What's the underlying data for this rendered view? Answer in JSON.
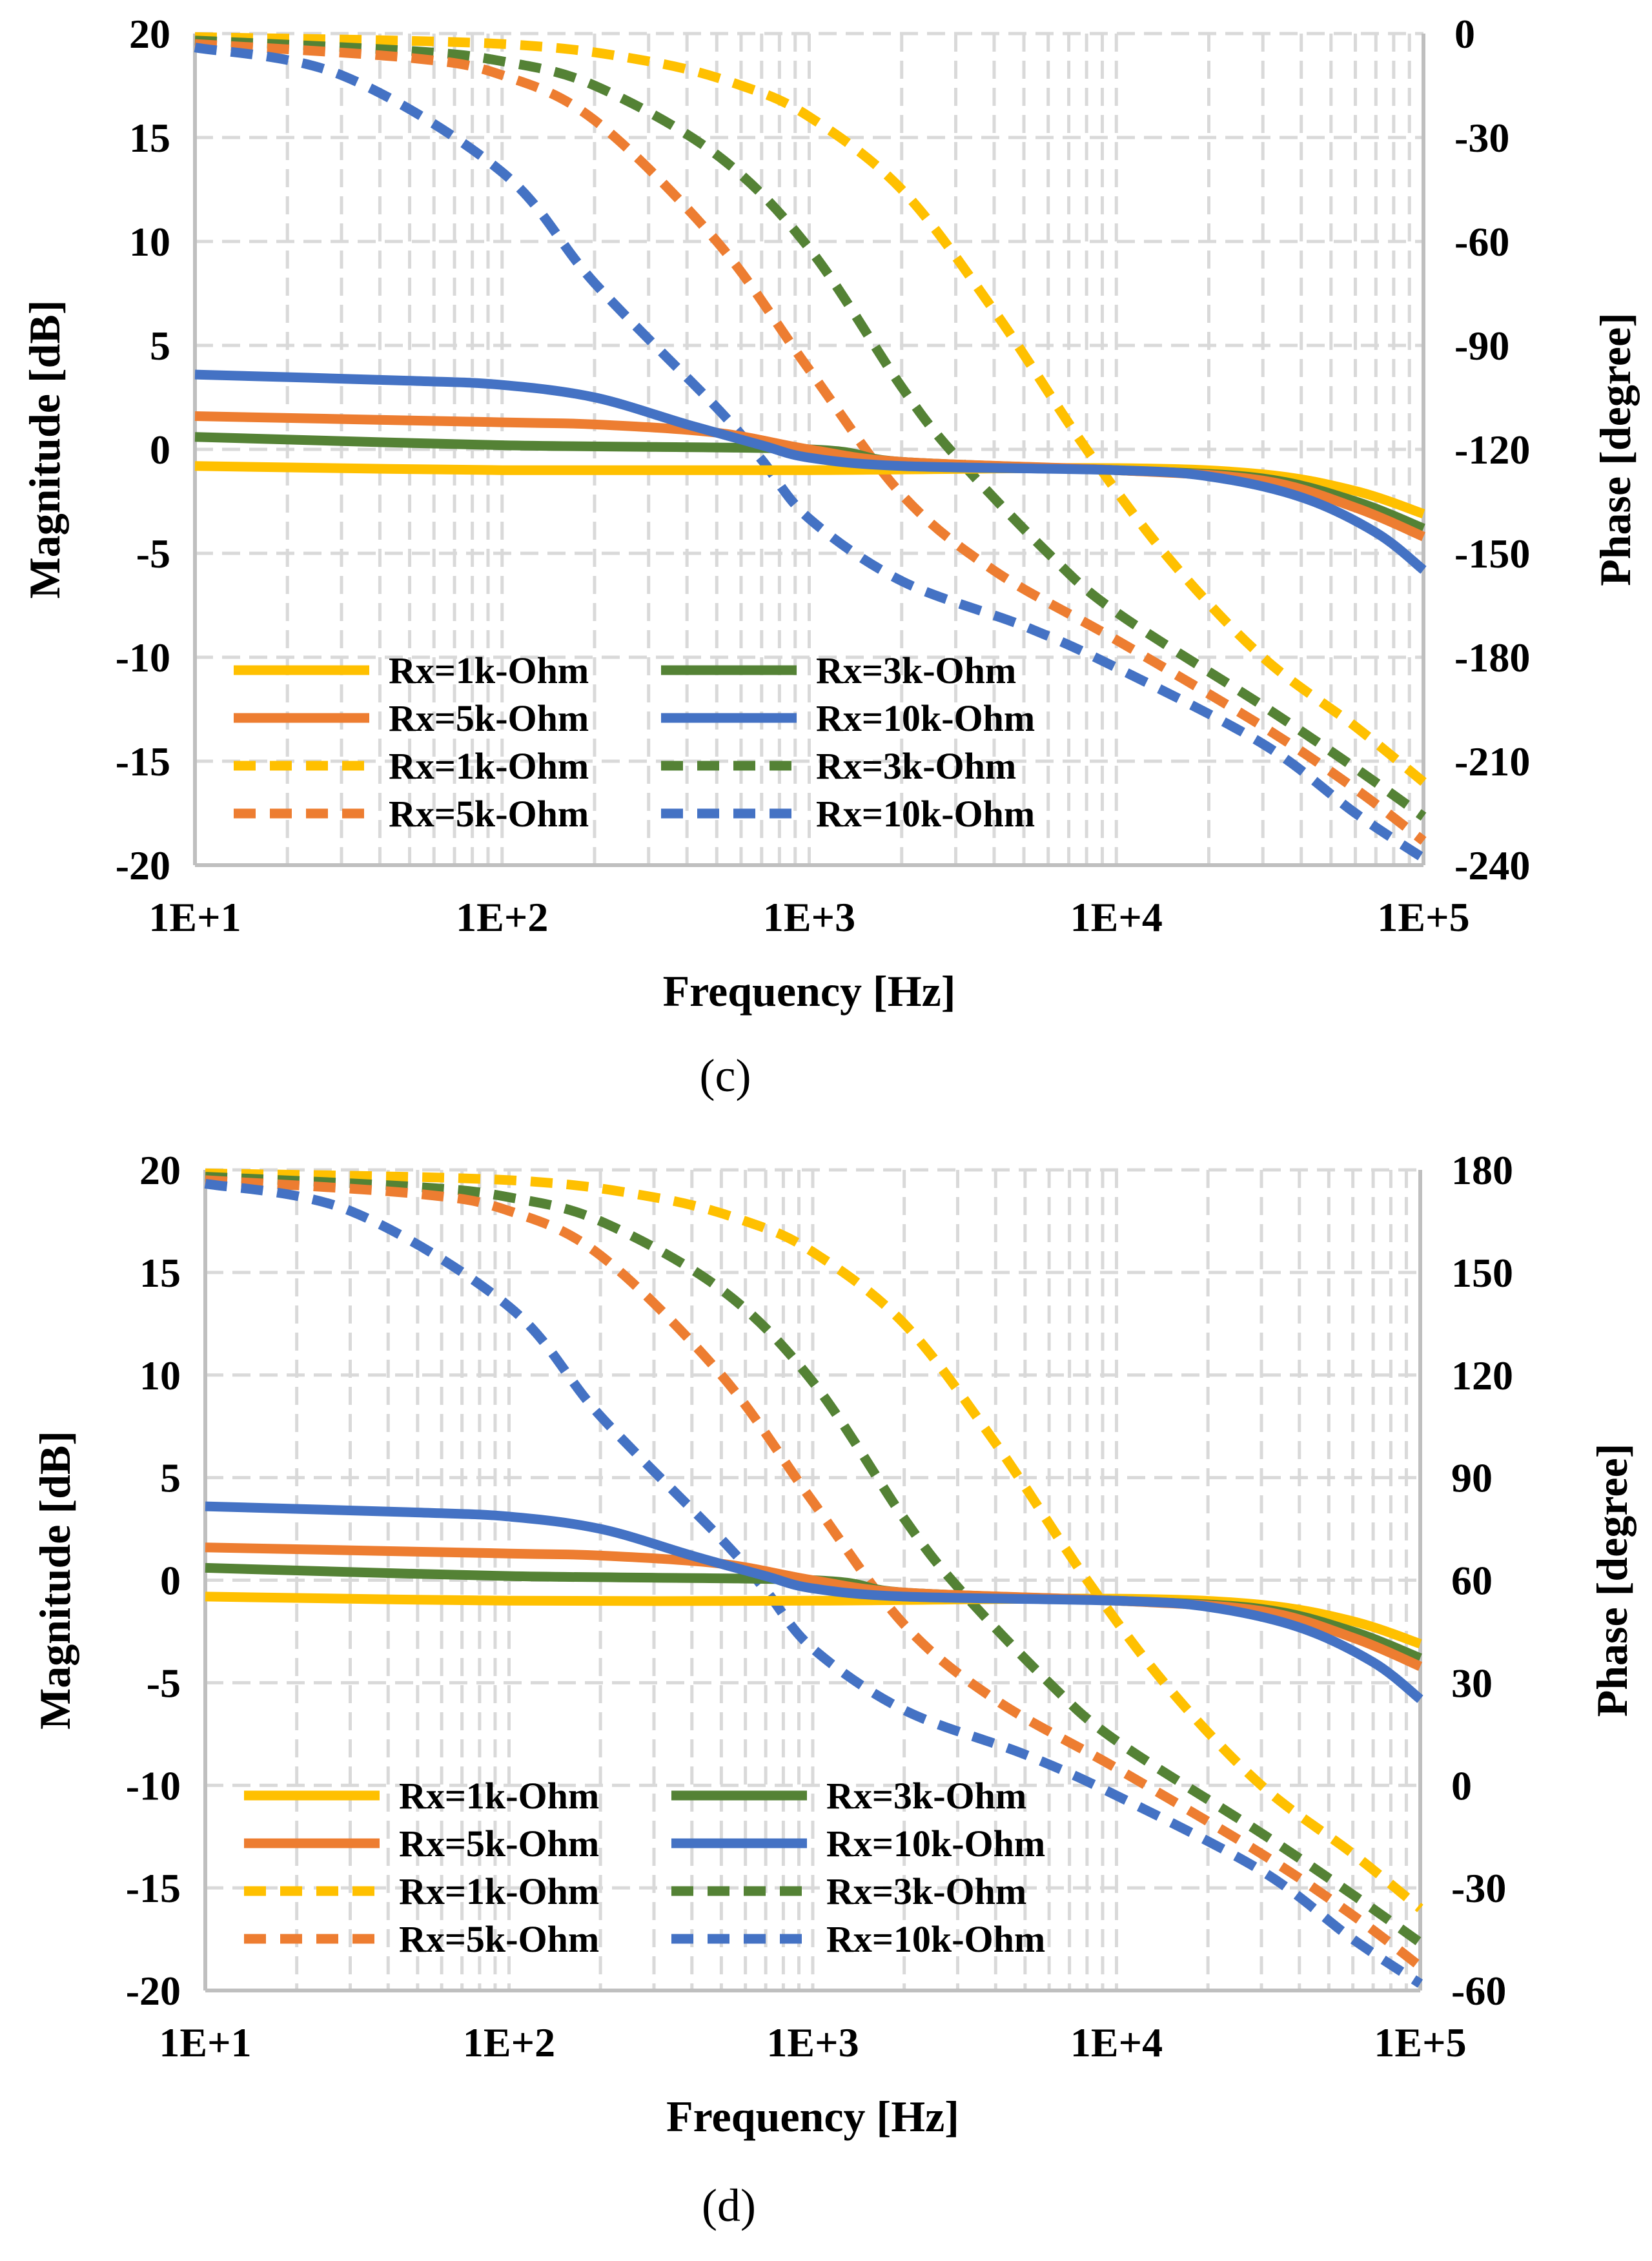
{
  "figure": {
    "panels": [
      {
        "caption": "(c)",
        "chart_data": {
          "type": "line",
          "xscale": "log",
          "xlim": [
            10,
            100000
          ],
          "x_ticks": [
            10,
            100,
            1000,
            10000,
            100000
          ],
          "x_tick_labels": [
            "1E+1",
            "1E+2",
            "1E+3",
            "1E+4",
            "1E+5"
          ],
          "xlabel": "Frequency [Hz]",
          "ylabel": "Magnitude [dB]",
          "ylim": [
            -20,
            20
          ],
          "y_ticks": [
            20,
            15,
            10,
            5,
            0,
            -5,
            -10,
            -15,
            -20
          ],
          "y2label": "Phase [degree]",
          "y2lim": [
            -240,
            0
          ],
          "y2_ticks": [
            0,
            -30,
            -60,
            -90,
            -120,
            -150,
            -180,
            -210,
            -240
          ],
          "grid": true,
          "legend_position": "bottom-left",
          "series": [
            {
              "name": "Rx=1k-Ohm",
              "quantity": "magnitude",
              "axis": "left",
              "color": "#FFC000",
              "dash": "solid",
              "x": [
                10,
                100,
                1000,
                10000,
                30000,
                60000,
                100000
              ],
              "y": [
                -0.8,
                -1.0,
                -1.0,
                -0.9,
                -1.2,
                -2.0,
                -3.1
              ]
            },
            {
              "name": "Rx=3k-Ohm",
              "quantity": "magnitude",
              "axis": "left",
              "color": "#548235",
              "dash": "solid",
              "x": [
                10,
                100,
                1000,
                2000,
                10000,
                30000,
                60000,
                100000
              ],
              "y": [
                0.6,
                0.2,
                0.0,
                -0.6,
                -1.0,
                -1.4,
                -2.5,
                -3.8
              ]
            },
            {
              "name": "Rx=5k-Ohm",
              "quantity": "magnitude",
              "axis": "left",
              "color": "#ED7D31",
              "dash": "solid",
              "x": [
                10,
                100,
                200,
                500,
                1000,
                2000,
                10000,
                30000,
                60000,
                100000
              ],
              "y": [
                1.6,
                1.3,
                1.2,
                0.8,
                0.0,
                -0.6,
                -1.0,
                -1.5,
                -2.8,
                -4.2
              ]
            },
            {
              "name": "Rx=10k-Ohm",
              "quantity": "magnitude",
              "axis": "left",
              "color": "#4472C4",
              "dash": "solid",
              "x": [
                10,
                50,
                100,
                200,
                400,
                700,
                1000,
                2000,
                10000,
                20000,
                40000,
                70000,
                100000
              ],
              "y": [
                3.6,
                3.3,
                3.1,
                2.5,
                1.2,
                0.2,
                -0.4,
                -0.8,
                -1.0,
                -1.3,
                -2.3,
                -4.0,
                -5.8
              ]
            },
            {
              "name": "Rx=1k-Ohm",
              "quantity": "phase",
              "axis": "right",
              "color": "#FFC000",
              "dash": "dashed",
              "x": [
                10,
                100,
                300,
                600,
                1000,
                2000,
                4000,
                8000,
                15000,
                30000,
                60000,
                100000
              ],
              "y": [
                -1,
                -3,
                -8,
                -15,
                -24,
                -45,
                -80,
                -120,
                -152,
                -180,
                -200,
                -216
              ]
            },
            {
              "name": "Rx=3k-Ohm",
              "quantity": "phase",
              "axis": "right",
              "color": "#548235",
              "dash": "dashed",
              "x": [
                10,
                50,
                100,
                200,
                500,
                1000,
                2000,
                3000,
                6000,
                10000,
                30000,
                60000,
                100000
              ],
              "y": [
                -2,
                -5,
                -8,
                -15,
                -35,
                -62,
                -102,
                -122,
                -150,
                -167,
                -194,
                -212,
                -226
              ]
            },
            {
              "name": "Rx=5k-Ohm",
              "quantity": "phase",
              "axis": "right",
              "color": "#ED7D31",
              "dash": "dashed",
              "x": [
                10,
                50,
                100,
                200,
                500,
                1000,
                2000,
                4000,
                10000,
                30000,
                60000,
                100000
              ],
              "y": [
                -3,
                -7,
                -12,
                -25,
                -60,
                -97,
                -133,
                -155,
                -175,
                -200,
                -218,
                -233
              ]
            },
            {
              "name": "Rx=10k-Ohm",
              "quantity": "phase",
              "axis": "right",
              "color": "#4472C4",
              "dash": "dashed",
              "x": [
                10,
                30,
                100,
                200,
                500,
                700,
                1000,
                2000,
                5000,
                10000,
                30000,
                60000,
                100000
              ],
              "y": [
                -4,
                -12,
                -40,
                -72,
                -108,
                -123,
                -140,
                -158,
                -171,
                -183,
                -205,
                -225,
                -238
              ]
            }
          ],
          "legend": [
            {
              "label": "Rx=1k-Ohm",
              "color": "#FFC000",
              "dash": "solid"
            },
            {
              "label": "Rx=3k-Ohm",
              "color": "#548235",
              "dash": "solid"
            },
            {
              "label": "Rx=5k-Ohm",
              "color": "#ED7D31",
              "dash": "solid"
            },
            {
              "label": "Rx=10k-Ohm",
              "color": "#4472C4",
              "dash": "solid"
            },
            {
              "label": "Rx=1k-Ohm",
              "color": "#FFC000",
              "dash": "dashed"
            },
            {
              "label": "Rx=3k-Ohm",
              "color": "#548235",
              "dash": "dashed"
            },
            {
              "label": "Rx=5k-Ohm",
              "color": "#ED7D31",
              "dash": "dashed"
            },
            {
              "label": "Rx=10k-Ohm",
              "color": "#4472C4",
              "dash": "dashed"
            }
          ]
        }
      },
      {
        "caption": "(d)",
        "chart_data": {
          "type": "line",
          "xscale": "log",
          "xlim": [
            10,
            100000
          ],
          "x_ticks": [
            10,
            100,
            1000,
            10000,
            100000
          ],
          "x_tick_labels": [
            "1E+1",
            "1E+2",
            "1E+3",
            "1E+4",
            "1E+5"
          ],
          "xlabel": "Frequency [Hz]",
          "ylabel": "Magnitude [dB]",
          "ylim": [
            -20,
            20
          ],
          "y_ticks": [
            20,
            15,
            10,
            5,
            0,
            -5,
            -10,
            -15,
            -20
          ],
          "y2label": "Phase [degree]",
          "y2lim": [
            -60,
            180
          ],
          "y2_ticks": [
            180,
            150,
            120,
            90,
            60,
            30,
            0,
            -30,
            -60
          ],
          "grid": true,
          "legend_position": "bottom-left",
          "series": [
            {
              "name": "Rx=1k-Ohm",
              "quantity": "magnitude",
              "axis": "left",
              "color": "#FFC000",
              "dash": "solid",
              "x": [
                10,
                100,
                1000,
                10000,
                30000,
                60000,
                100000
              ],
              "y": [
                -0.8,
                -1.0,
                -1.0,
                -0.9,
                -1.2,
                -2.0,
                -3.1
              ]
            },
            {
              "name": "Rx=3k-Ohm",
              "quantity": "magnitude",
              "axis": "left",
              "color": "#548235",
              "dash": "solid",
              "x": [
                10,
                100,
                1000,
                2000,
                10000,
                30000,
                60000,
                100000
              ],
              "y": [
                0.6,
                0.2,
                0.0,
                -0.6,
                -1.0,
                -1.4,
                -2.5,
                -3.8
              ]
            },
            {
              "name": "Rx=5k-Ohm",
              "quantity": "magnitude",
              "axis": "left",
              "color": "#ED7D31",
              "dash": "solid",
              "x": [
                10,
                100,
                200,
                500,
                1000,
                2000,
                10000,
                30000,
                60000,
                100000
              ],
              "y": [
                1.6,
                1.3,
                1.2,
                0.8,
                0.0,
                -0.6,
                -1.0,
                -1.5,
                -2.8,
                -4.2
              ]
            },
            {
              "name": "Rx=10k-Ohm",
              "quantity": "magnitude",
              "axis": "left",
              "color": "#4472C4",
              "dash": "solid",
              "x": [
                10,
                50,
                100,
                200,
                400,
                700,
                1000,
                2000,
                10000,
                20000,
                40000,
                70000,
                100000
              ],
              "y": [
                3.6,
                3.3,
                3.1,
                2.5,
                1.2,
                0.2,
                -0.4,
                -0.8,
                -1.0,
                -1.3,
                -2.3,
                -4.0,
                -5.8
              ]
            },
            {
              "name": "Rx=1k-Ohm",
              "quantity": "phase",
              "axis": "right",
              "color": "#FFC000",
              "dash": "dashed",
              "x": [
                10,
                100,
                300,
                600,
                1000,
                2000,
                4000,
                8000,
                15000,
                30000,
                60000,
                100000
              ],
              "y": [
                179,
                177,
                172,
                165,
                156,
                135,
                100,
                60,
                28,
                0,
                -20,
                -36
              ]
            },
            {
              "name": "Rx=3k-Ohm",
              "quantity": "phase",
              "axis": "right",
              "color": "#548235",
              "dash": "dashed",
              "x": [
                10,
                50,
                100,
                200,
                500,
                1000,
                2000,
                3000,
                6000,
                10000,
                30000,
                60000,
                100000
              ],
              "y": [
                178,
                175,
                172,
                165,
                145,
                118,
                78,
                58,
                30,
                13,
                -14,
                -32,
                -46
              ]
            },
            {
              "name": "Rx=5k-Ohm",
              "quantity": "phase",
              "axis": "right",
              "color": "#ED7D31",
              "dash": "dashed",
              "x": [
                10,
                50,
                100,
                200,
                500,
                1000,
                2000,
                4000,
                10000,
                30000,
                60000,
                100000
              ],
              "y": [
                177,
                173,
                168,
                155,
                120,
                83,
                47,
                25,
                5,
                -20,
                -38,
                -53
              ]
            },
            {
              "name": "Rx=10k-Ohm",
              "quantity": "phase",
              "axis": "right",
              "color": "#4472C4",
              "dash": "dashed",
              "x": [
                10,
                30,
                100,
                200,
                500,
                700,
                1000,
                2000,
                5000,
                10000,
                30000,
                60000,
                100000
              ],
              "y": [
                176,
                168,
                140,
                108,
                72,
                57,
                40,
                22,
                9,
                -3,
                -25,
                -45,
                -58
              ]
            }
          ],
          "legend": [
            {
              "label": "Rx=1k-Ohm",
              "color": "#FFC000",
              "dash": "solid"
            },
            {
              "label": "Rx=3k-Ohm",
              "color": "#548235",
              "dash": "solid"
            },
            {
              "label": "Rx=5k-Ohm",
              "color": "#ED7D31",
              "dash": "solid"
            },
            {
              "label": "Rx=10k-Ohm",
              "color": "#4472C4",
              "dash": "solid"
            },
            {
              "label": "Rx=1k-Ohm",
              "color": "#FFC000",
              "dash": "dashed"
            },
            {
              "label": "Rx=3k-Ohm",
              "color": "#548235",
              "dash": "dashed"
            },
            {
              "label": "Rx=5k-Ohm",
              "color": "#ED7D31",
              "dash": "dashed"
            },
            {
              "label": "Rx=10k-Ohm",
              "color": "#4472C4",
              "dash": "dashed"
            }
          ]
        }
      }
    ]
  }
}
